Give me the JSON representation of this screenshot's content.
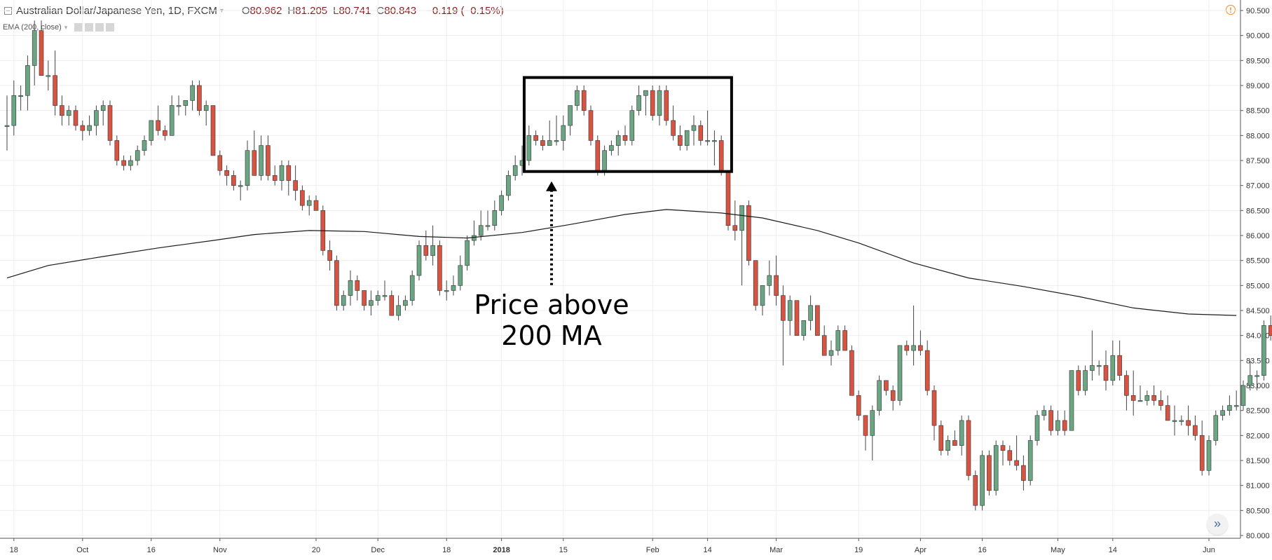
{
  "header": {
    "title": "Australian Dollar/Japanese Yen, 1D, FXCM",
    "caret": "▾",
    "open_label": "O",
    "open": "80.962",
    "high_label": "H",
    "high": "81.205",
    "low_label": "L",
    "low": "80.741",
    "close_label": "C",
    "close": "80.843",
    "change": "−0.119 (−0.15%)"
  },
  "indicator": {
    "label": "EMA (200, close)",
    "caret": "▾"
  },
  "alert_icon": "!",
  "scroll_button_icon": "»",
  "colors": {
    "up": "#6ba583",
    "down": "#d75442",
    "grid": "#eeeeee",
    "ema": "#1b1b1b",
    "box": "#000000"
  },
  "chart_data": {
    "type": "candlestick",
    "title": "",
    "ylim": [
      80.0,
      90.6
    ],
    "y_ticks": [
      "80.000",
      "80.500",
      "81.000",
      "81.500",
      "82.000",
      "82.500",
      "83.000",
      "83.500",
      "84.000",
      "84.500",
      "85.000",
      "85.500",
      "86.000",
      "86.500",
      "87.000",
      "87.500",
      "88.000",
      "88.500",
      "89.000",
      "89.500",
      "90.000",
      "90.500"
    ],
    "x_ticks": [
      {
        "label": "18",
        "bar": 1
      },
      {
        "label": "Oct",
        "bar": 11
      },
      {
        "label": "16",
        "bar": 21
      },
      {
        "label": "Nov",
        "bar": 31
      },
      {
        "label": "20",
        "bar": 45
      },
      {
        "label": "Dec",
        "bar": 54
      },
      {
        "label": "18",
        "bar": 64
      },
      {
        "label": "2018",
        "bar": 72
      },
      {
        "label": "15",
        "bar": 81
      },
      {
        "label": "Feb",
        "bar": 94
      },
      {
        "label": "14",
        "bar": 102
      },
      {
        "label": "Mar",
        "bar": 112
      },
      {
        "label": "19",
        "bar": 124
      },
      {
        "label": "Apr",
        "bar": 133
      },
      {
        "label": "16",
        "bar": 142
      },
      {
        "label": "May",
        "bar": 153
      },
      {
        "label": "14",
        "bar": 161
      },
      {
        "label": "Jun",
        "bar": 175
      }
    ],
    "candles": [
      [
        88.2,
        88.8,
        87.7,
        88.2
      ],
      [
        88.2,
        89.1,
        88.0,
        88.8
      ],
      [
        88.8,
        89.0,
        88.5,
        88.8
      ],
      [
        88.8,
        89.6,
        88.5,
        89.4
      ],
      [
        89.4,
        90.3,
        89.0,
        90.1
      ],
      [
        90.1,
        90.3,
        89.2,
        89.2
      ],
      [
        89.2,
        89.5,
        88.9,
        89.2
      ],
      [
        89.2,
        89.7,
        88.4,
        88.6
      ],
      [
        88.6,
        88.8,
        88.2,
        88.4
      ],
      [
        88.4,
        88.6,
        88.2,
        88.5
      ],
      [
        88.5,
        88.6,
        88.1,
        88.2
      ],
      [
        88.2,
        88.3,
        87.9,
        88.1
      ],
      [
        88.1,
        88.4,
        88.0,
        88.2
      ],
      [
        88.2,
        88.6,
        88.0,
        88.5
      ],
      [
        88.5,
        88.7,
        88.2,
        88.6
      ],
      [
        88.6,
        88.7,
        87.8,
        87.9
      ],
      [
        87.9,
        88.0,
        87.4,
        87.5
      ],
      [
        87.5,
        87.6,
        87.3,
        87.4
      ],
      [
        87.4,
        87.6,
        87.3,
        87.5
      ],
      [
        87.5,
        87.8,
        87.4,
        87.7
      ],
      [
        87.7,
        88.0,
        87.6,
        87.9
      ],
      [
        87.9,
        88.3,
        87.8,
        88.3
      ],
      [
        88.3,
        88.6,
        88.0,
        88.1
      ],
      [
        88.1,
        88.2,
        87.9,
        88.0
      ],
      [
        88.0,
        88.8,
        88.0,
        88.6
      ],
      [
        88.6,
        88.8,
        88.4,
        88.6
      ],
      [
        88.6,
        88.7,
        88.4,
        88.7
      ],
      [
        88.7,
        89.1,
        88.5,
        89.0
      ],
      [
        89.0,
        89.1,
        88.4,
        88.5
      ],
      [
        88.5,
        88.7,
        88.2,
        88.6
      ],
      [
        88.6,
        88.6,
        87.6,
        87.6
      ],
      [
        87.6,
        87.7,
        87.2,
        87.3
      ],
      [
        87.3,
        87.4,
        87.0,
        87.2
      ],
      [
        87.2,
        87.3,
        86.9,
        87.0
      ],
      [
        87.0,
        87.1,
        86.7,
        87.0
      ],
      [
        87.0,
        87.9,
        86.9,
        87.7
      ],
      [
        87.7,
        88.1,
        87.2,
        87.2
      ],
      [
        87.2,
        88.0,
        87.1,
        87.8
      ],
      [
        87.8,
        88.0,
        87.1,
        87.2
      ],
      [
        87.2,
        87.4,
        87.0,
        87.1
      ],
      [
        87.1,
        87.5,
        86.9,
        87.4
      ],
      [
        87.4,
        87.5,
        86.8,
        87.1
      ],
      [
        87.1,
        87.4,
        86.7,
        86.9
      ],
      [
        86.9,
        87.0,
        86.5,
        86.6
      ],
      [
        86.6,
        86.8,
        86.4,
        86.7
      ],
      [
        86.7,
        86.8,
        86.5,
        86.5
      ],
      [
        86.5,
        86.6,
        85.6,
        85.7
      ],
      [
        85.7,
        85.9,
        85.3,
        85.5
      ],
      [
        85.5,
        85.6,
        84.5,
        84.6
      ],
      [
        84.6,
        84.9,
        84.5,
        84.8
      ],
      [
        84.8,
        85.3,
        84.6,
        85.1
      ],
      [
        85.1,
        85.2,
        84.7,
        84.9
      ],
      [
        84.9,
        84.9,
        84.5,
        84.6
      ],
      [
        84.6,
        84.9,
        84.4,
        84.7
      ],
      [
        84.7,
        84.9,
        84.6,
        84.8
      ],
      [
        84.8,
        85.1,
        84.7,
        84.8
      ],
      [
        84.8,
        84.9,
        84.4,
        84.4
      ],
      [
        84.4,
        84.8,
        84.3,
        84.6
      ],
      [
        84.6,
        84.8,
        84.5,
        84.7
      ],
      [
        84.7,
        85.3,
        84.6,
        85.2
      ],
      [
        85.2,
        85.9,
        85.1,
        85.8
      ],
      [
        85.8,
        86.1,
        85.5,
        85.6
      ],
      [
        85.6,
        86.2,
        85.4,
        85.8
      ],
      [
        85.8,
        85.9,
        84.8,
        84.9
      ],
      [
        84.9,
        85.1,
        84.7,
        84.9
      ],
      [
        84.9,
        85.2,
        84.8,
        85.0
      ],
      [
        85.0,
        85.6,
        84.9,
        85.4
      ],
      [
        85.4,
        86.0,
        85.3,
        85.9
      ],
      [
        85.9,
        86.3,
        85.8,
        86.0
      ],
      [
        86.0,
        86.5,
        85.9,
        86.2
      ],
      [
        86.2,
        86.5,
        86.1,
        86.2
      ],
      [
        86.2,
        86.7,
        86.1,
        86.5
      ],
      [
        86.5,
        86.9,
        86.4,
        86.8
      ],
      [
        86.8,
        87.3,
        86.7,
        87.2
      ],
      [
        87.2,
        87.6,
        87.1,
        87.4
      ],
      [
        87.4,
        87.8,
        87.2,
        87.5
      ]
    ],
    "candles_b": [
      [
        87.5,
        88.2,
        87.4,
        88.0
      ],
      [
        88.0,
        88.1,
        87.8,
        87.9
      ],
      [
        87.9,
        88.0,
        87.7,
        87.8
      ],
      [
        87.8,
        88.3,
        87.8,
        87.9
      ],
      [
        87.9,
        88.4,
        87.8,
        87.9
      ],
      [
        87.9,
        88.4,
        87.7,
        88.2
      ],
      [
        88.2,
        88.6,
        88.0,
        88.6
      ],
      [
        88.6,
        89.0,
        88.5,
        88.9
      ],
      [
        88.9,
        89.0,
        88.4,
        88.5
      ],
      [
        88.5,
        88.6,
        87.8,
        87.9
      ],
      [
        87.9,
        88.0,
        87.2,
        87.3
      ],
      [
        87.3,
        87.8,
        87.2,
        87.7
      ],
      [
        87.7,
        87.9,
        87.6,
        87.8
      ],
      [
        87.8,
        88.1,
        87.6,
        88.0
      ],
      [
        88.0,
        88.2,
        87.8,
        87.9
      ],
      [
        87.9,
        88.6,
        87.8,
        88.5
      ],
      [
        88.5,
        89.0,
        88.4,
        88.8
      ],
      [
        88.8,
        88.9,
        88.4,
        88.9
      ],
      [
        88.9,
        89.0,
        88.3,
        88.4
      ],
      [
        88.4,
        89.0,
        88.2,
        88.9
      ],
      [
        88.9,
        89.0,
        88.2,
        88.3
      ],
      [
        88.3,
        88.6,
        87.9,
        88.0
      ],
      [
        88.0,
        88.2,
        87.7,
        87.8
      ],
      [
        87.8,
        88.1,
        87.7,
        88.1
      ],
      [
        88.1,
        88.4,
        87.8,
        88.2
      ],
      [
        88.2,
        88.3,
        87.8,
        87.9
      ],
      [
        87.9,
        88.5,
        87.8,
        87.9
      ],
      [
        87.9,
        88.1,
        87.4,
        87.9
      ],
      [
        87.9,
        88.0,
        87.2,
        87.3
      ],
      [
        87.3,
        87.3,
        86.1,
        86.2
      ],
      [
        86.2,
        86.7,
        85.9,
        86.1
      ],
      [
        86.1,
        86.6,
        85.0,
        86.6
      ],
      [
        86.6,
        86.7,
        85.4,
        85.5
      ],
      [
        85.5,
        85.5,
        84.5,
        84.6
      ],
      [
        84.6,
        85.0,
        84.4,
        85.0
      ],
      [
        85.0,
        85.5,
        84.8,
        85.2
      ],
      [
        85.2,
        85.6,
        84.6,
        84.8
      ],
      [
        84.8,
        85.0,
        83.4,
        84.3
      ],
      [
        84.3,
        84.8,
        84.0,
        84.7
      ],
      [
        84.7,
        84.7,
        84.0,
        84.0
      ],
      [
        84.0,
        84.3,
        83.9,
        84.3
      ],
      [
        84.3,
        84.8,
        84.1,
        84.6
      ],
      [
        84.6,
        84.6,
        84.0,
        84.0
      ],
      [
        84.0,
        84.2,
        83.6,
        83.6
      ],
      [
        83.6,
        83.9,
        83.4,
        83.7
      ],
      [
        83.7,
        84.2,
        83.6,
        84.1
      ],
      [
        84.1,
        84.2,
        83.7,
        83.7
      ],
      [
        83.7,
        83.8,
        82.8,
        82.8
      ],
      [
        82.8,
        82.9,
        82.3,
        82.4
      ],
      [
        82.4,
        82.4,
        81.7,
        82.0
      ],
      [
        82.0,
        82.6,
        81.5,
        82.5
      ],
      [
        82.5,
        83.2,
        82.4,
        83.1
      ],
      [
        83.1,
        83.1,
        82.8,
        82.9
      ],
      [
        82.9,
        83.0,
        82.5,
        82.7
      ],
      [
        82.7,
        83.8,
        82.6,
        83.8
      ],
      [
        83.8,
        83.9,
        83.6,
        83.7
      ],
      [
        83.7,
        84.6,
        83.4,
        83.8
      ],
      [
        83.8,
        84.1,
        83.6,
        83.7
      ],
      [
        83.7,
        83.9,
        82.8,
        82.9
      ],
      [
        82.9,
        83.0,
        81.9,
        82.2
      ],
      [
        82.2,
        82.3,
        81.6,
        81.7
      ],
      [
        81.7,
        82.0,
        81.6,
        81.9
      ],
      [
        81.9,
        82.1,
        81.8,
        81.8
      ],
      [
        81.8,
        82.4,
        81.6,
        82.3
      ],
      [
        82.3,
        82.4,
        81.1,
        81.2
      ],
      [
        81.2,
        81.3,
        80.5,
        80.6
      ],
      [
        80.6,
        81.7,
        80.5,
        81.6
      ],
      [
        81.6,
        81.7,
        80.8,
        80.9
      ],
      [
        80.9,
        81.9,
        80.8,
        81.8
      ],
      [
        81.8,
        81.9,
        81.4,
        81.7
      ],
      [
        81.7,
        81.8,
        81.4,
        81.5
      ],
      [
        81.5,
        82.0,
        81.3,
        81.4
      ],
      [
        81.4,
        81.6,
        80.9,
        81.1
      ],
      [
        81.1,
        82.0,
        81.0,
        81.9
      ],
      [
        81.9,
        82.5,
        81.8,
        82.4
      ],
      [
        82.4,
        82.6,
        82.3,
        82.5
      ]
    ],
    "candles_c": [
      [
        82.5,
        82.6,
        82.0,
        82.1
      ],
      [
        82.1,
        82.5,
        82.0,
        82.3
      ],
      [
        82.3,
        82.5,
        82.0,
        82.1
      ],
      [
        82.1,
        83.3,
        82.1,
        83.3
      ],
      [
        83.3,
        83.4,
        82.8,
        82.9
      ],
      [
        82.9,
        83.4,
        82.8,
        83.3
      ],
      [
        83.3,
        84.1,
        83.1,
        83.4
      ],
      [
        83.4,
        83.5,
        83.2,
        83.4
      ],
      [
        83.4,
        83.7,
        82.9,
        83.1
      ],
      [
        83.1,
        83.9,
        83.0,
        83.6
      ],
      [
        83.6,
        83.9,
        83.1,
        83.2
      ],
      [
        83.2,
        83.3,
        82.5,
        82.8
      ],
      [
        82.8,
        83.3,
        82.4,
        82.7
      ],
      [
        82.7,
        83.0,
        82.7,
        82.7
      ],
      [
        82.7,
        82.9,
        82.6,
        82.8
      ],
      [
        82.8,
        83.0,
        82.6,
        82.7
      ],
      [
        82.7,
        82.9,
        82.5,
        82.6
      ],
      [
        82.6,
        82.8,
        82.3,
        82.3
      ],
      [
        82.3,
        82.6,
        82.0,
        82.3
      ],
      [
        82.3,
        82.4,
        82.2,
        82.3
      ],
      [
        82.3,
        82.6,
        82.0,
        82.2
      ],
      [
        82.2,
        82.4,
        81.9,
        82.0
      ],
      [
        82.0,
        82.3,
        81.2,
        81.3
      ],
      [
        81.3,
        82.0,
        81.2,
        81.9
      ],
      [
        81.9,
        82.5,
        81.8,
        82.4
      ],
      [
        82.4,
        82.6,
        82.3,
        82.5
      ],
      [
        82.5,
        82.8,
        82.4,
        82.6
      ],
      [
        82.6,
        82.9,
        82.5,
        82.6
      ],
      [
        82.6,
        83.1,
        82.5,
        83.0
      ],
      [
        83.0,
        83.5,
        82.9,
        83.2
      ],
      [
        83.2,
        83.3,
        82.9,
        83.2
      ],
      [
        83.2,
        84.3,
        83.1,
        84.2
      ],
      [
        84.2,
        84.4,
        83.9,
        84.0
      ],
      [
        84.0,
        84.1,
        83.2,
        83.2
      ],
      [
        83.2,
        83.3,
        82.5,
        82.6
      ],
      [
        82.6,
        83.0,
        82.4,
        82.9
      ],
      [
        82.9,
        83.0,
        82.4,
        82.5
      ],
      [
        82.5,
        82.5,
        81.5,
        81.6
      ],
      [
        81.6,
        82.5,
        81.1,
        82.5
      ],
      [
        82.5,
        82.6,
        82.3,
        82.3
      ],
      [
        82.3,
        82.9,
        82.2,
        82.8
      ],
      [
        82.8,
        83.9,
        82.7,
        83.9
      ],
      [
        83.9,
        84.0,
        83.5,
        83.6
      ],
      [
        83.6,
        84.5,
        83.5,
        84.5
      ],
      [
        84.5,
        84.5,
        83.5,
        83.6
      ],
      [
        83.6,
        83.7,
        82.9,
        83.1
      ],
      [
        83.1,
        83.8,
        82.9,
        83.6
      ],
      [
        83.6,
        84.2,
        83.5,
        83.6
      ]
    ],
    "ema": [
      [
        0,
        85.15
      ],
      [
        6,
        85.4
      ],
      [
        14,
        85.58
      ],
      [
        22,
        85.75
      ],
      [
        30,
        85.9
      ],
      [
        36,
        86.02
      ],
      [
        44,
        86.1
      ],
      [
        52,
        86.08
      ],
      [
        60,
        85.98
      ],
      [
        67,
        85.95
      ],
      [
        75,
        86.06
      ],
      [
        82,
        86.22
      ],
      [
        90,
        86.42
      ],
      [
        96,
        86.52
      ],
      [
        104,
        86.45
      ],
      [
        110,
        86.35
      ],
      [
        118,
        86.1
      ],
      [
        124,
        85.85
      ],
      [
        132,
        85.45
      ],
      [
        140,
        85.15
      ],
      [
        148,
        84.98
      ],
      [
        156,
        84.78
      ],
      [
        164,
        84.55
      ],
      [
        172,
        84.43
      ],
      [
        179,
        84.4
      ]
    ],
    "annotation": {
      "text_line1": "Price above",
      "text_line2": "200 MA",
      "box": {
        "bar_from": 75.3,
        "bar_to": 105.5,
        "price_top": 89.16,
        "price_bottom": 87.28
      }
    }
  }
}
